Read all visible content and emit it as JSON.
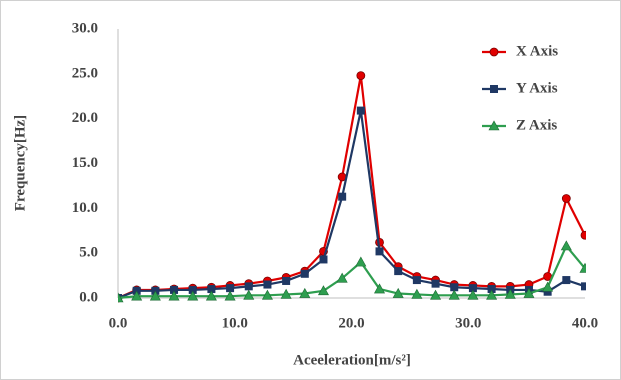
{
  "chart_data": {
    "type": "line",
    "x_label": "Aceeleration[m/s²]",
    "y_label": "Frequency[Hz]",
    "x": [
      0,
      1.6,
      3.2,
      4.8,
      6.4,
      8.0,
      9.6,
      11.2,
      12.8,
      14.4,
      16.0,
      17.6,
      19.2,
      20.8,
      22.4,
      24.0,
      25.6,
      27.2,
      28.8,
      30.4,
      32.0,
      33.6,
      35.2,
      36.8,
      38.4,
      40.0
    ],
    "series": [
      {
        "name": "X Axis",
        "color": "#e00000",
        "marker": "circle",
        "values": [
          0,
          0.9,
          0.9,
          1.0,
          1.1,
          1.2,
          1.4,
          1.6,
          1.9,
          2.3,
          3.0,
          5.2,
          13.5,
          24.8,
          6.2,
          3.5,
          2.4,
          2.0,
          1.5,
          1.4,
          1.3,
          1.3,
          1.5,
          2.4,
          11.1,
          7.0
        ]
      },
      {
        "name": "Y Axis",
        "color": "#1f3864",
        "marker": "square",
        "values": [
          0,
          0.8,
          0.8,
          0.9,
          0.9,
          1.0,
          1.1,
          1.3,
          1.5,
          1.9,
          2.7,
          4.3,
          11.3,
          20.9,
          5.2,
          3.0,
          2.0,
          1.6,
          1.2,
          1.1,
          1.0,
          0.9,
          0.9,
          0.7,
          2.0,
          1.3
        ]
      },
      {
        "name": "Z Axis",
        "color": "#2e9e4f",
        "marker": "triangle",
        "values": [
          0,
          0.2,
          0.2,
          0.2,
          0.2,
          0.2,
          0.2,
          0.3,
          0.3,
          0.4,
          0.5,
          0.8,
          2.2,
          4.0,
          1.0,
          0.5,
          0.4,
          0.3,
          0.3,
          0.3,
          0.3,
          0.4,
          0.5,
          1.2,
          5.8,
          3.3
        ]
      }
    ],
    "xlim": [
      0,
      40
    ],
    "xticks": [
      {
        "value": 0,
        "label": "0.0"
      },
      {
        "value": 10,
        "label": "10.0"
      },
      {
        "value": 20,
        "label": "20.0"
      },
      {
        "value": 30,
        "label": "30.0"
      },
      {
        "value": 40,
        "label": "40.0"
      }
    ],
    "ylim": [
      0,
      30
    ],
    "yticks": [
      {
        "value": 0,
        "label": "0.0"
      },
      {
        "value": 5,
        "label": "5.0"
      },
      {
        "value": 10,
        "label": "10.0"
      },
      {
        "value": 15,
        "label": "15.0"
      },
      {
        "value": 20,
        "label": "20.0"
      },
      {
        "value": 25,
        "label": "25.0"
      },
      {
        "value": 30,
        "label": "30.0"
      }
    ],
    "grid": false,
    "legend": "top-right"
  }
}
